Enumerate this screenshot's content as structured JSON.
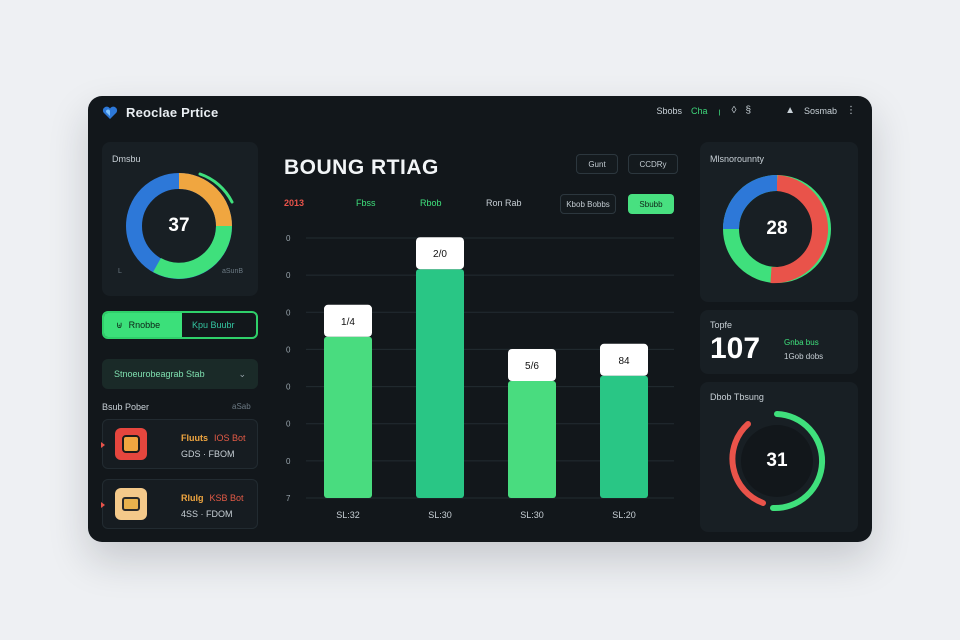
{
  "app": {
    "title": "Reoclae Prtice",
    "logo_icon": "heart-shield-icon"
  },
  "toolbar": {
    "item1": "Sbobs",
    "item2": "Cha",
    "item3": "Sosmab"
  },
  "left": {
    "donut": {
      "label": "Dmsbu",
      "value": "37",
      "corner_a": "L",
      "corner_b": "aSunB"
    },
    "pill": {
      "active": "Rnobbe",
      "inactive": "Kpu Buubr"
    },
    "dropdown": "Stnoeurobeagrab Stab",
    "list": {
      "header": "Bsub Pober",
      "header_right": "aSab",
      "items": [
        {
          "title": "Fluuts",
          "tag": "IOS Bot",
          "line2": "GDS · FBOM"
        },
        {
          "title": "Rlulg",
          "tag": "KSB Bot",
          "line2": "4SS · FDOM"
        }
      ]
    }
  },
  "center": {
    "title": "BOUNG RTIAG",
    "top_buttons": [
      "Gunt",
      "CCDRy"
    ],
    "filters": {
      "year": "2013",
      "f1": "Fbss",
      "f2": "Rbob",
      "f3": "Ron Rab"
    },
    "controls": {
      "outline": "Kbob Bobbs",
      "green": "Sbubb"
    },
    "y_ticks": [
      "0",
      "0",
      "0",
      "0",
      "0",
      "0",
      "0",
      "7"
    ]
  },
  "chart_data": {
    "type": "bar",
    "categories": [
      "SL:32",
      "SL:30",
      "SL:30",
      "SL:20"
    ],
    "values": [
      62,
      88,
      45,
      47
    ],
    "data_labels": [
      "1/4",
      "2/0",
      "5/6",
      "84"
    ],
    "ylim": [
      0,
      100
    ],
    "series_colors": [
      "#49dc7f",
      "#29c685",
      "#49dc7f",
      "#29c685"
    ],
    "grid": true
  },
  "right": {
    "donut1": {
      "label": "Mlsnorounnty",
      "value": "28"
    },
    "stat": {
      "label": "Topfe",
      "value": "107",
      "line1": "Gnba bus",
      "line2": "1Gob dobs"
    },
    "gauge": {
      "label": "Dbob Tbsung",
      "value": "31"
    }
  },
  "colors": {
    "green": "#3fe07c",
    "blue": "#2d78d8",
    "orange": "#f0a640",
    "red": "#e9534a",
    "teal": "#2bbf8a"
  }
}
